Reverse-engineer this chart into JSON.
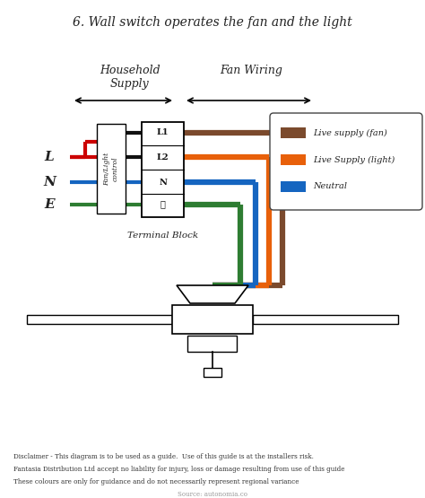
{
  "title": "6. Wall switch operates the fan and the light",
  "background_color": "#ffffff",
  "disclaimer1": "Disclaimer - This diagram is to be used as a guide.  Use of this guide is at the installers risk.",
  "disclaimer2": "Fantasia Distribution Ltd accept no liability for injury, loss or damage resulting from use of this guide",
  "disclaimer3": "These colours are only for guidance and do not necessarily represent regional variance",
  "source": "Source: autonomia.co",
  "label_household": "Household",
  "label_supply": "Supply",
  "label_fan_wiring": "Fan Wiring",
  "label_terminal": "Terminal Block",
  "label_fan_light": "Fan/Light\ncontrol",
  "wire_colors": {
    "brown": "#7B4A2D",
    "orange": "#E8600A",
    "blue": "#1565C0",
    "green": "#2E7D32",
    "black": "#111111",
    "red": "#CC0000",
    "grey": "#888888"
  },
  "legend_items": [
    {
      "label": "Live supply (fan)",
      "color": "#7B4A2D"
    },
    {
      "label": "Live Supply (light)",
      "color": "#E8600A"
    },
    {
      "label": "Neutral",
      "color": "#1565C0"
    }
  ],
  "lne_labels": [
    "L",
    "N",
    "E"
  ],
  "terminal_labels": [
    "L1",
    "L2",
    "N",
    "⏚"
  ]
}
